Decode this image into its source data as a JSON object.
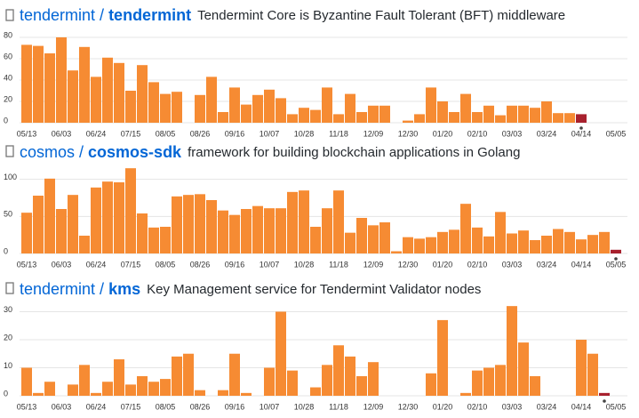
{
  "chart_data": [
    {
      "type": "bar",
      "owner": "tendermint",
      "separator": "/",
      "repo": "tendermint",
      "description": "Tendermint Core is Byzantine Fault Tolerant (BFT) middleware",
      "categories": [
        "05/13",
        null,
        null,
        "06/03",
        null,
        null,
        "06/24",
        null,
        null,
        "07/15",
        null,
        null,
        "08/05",
        null,
        null,
        "08/26",
        null,
        null,
        "09/16",
        null,
        null,
        "10/07",
        null,
        null,
        "10/28",
        null,
        null,
        "11/18",
        null,
        null,
        "12/09",
        null,
        null,
        "12/30",
        null,
        null,
        "01/20",
        null,
        null,
        "02/10",
        null,
        null,
        "03/03",
        null,
        null,
        "03/24",
        null,
        null,
        "04/14",
        null,
        null,
        "05/05"
      ],
      "values": [
        73,
        72,
        65,
        80,
        49,
        71,
        43,
        61,
        56,
        30,
        54,
        38,
        27,
        29,
        0,
        26,
        43,
        10,
        33,
        17,
        26,
        31,
        23,
        8,
        14,
        12,
        33,
        8,
        27,
        10,
        16,
        16,
        0,
        2,
        8,
        33,
        20,
        10,
        27,
        10,
        16,
        7,
        16,
        16,
        14,
        20,
        9,
        9,
        8,
        null,
        null,
        null
      ],
      "color": "#f68b33",
      "highlight_color": "#a8212e",
      "highlight_index": 48,
      "ylim": [
        0,
        85
      ],
      "yticks": [
        0,
        20,
        40,
        60,
        80
      ],
      "grid": true
    },
    {
      "type": "bar",
      "owner": "cosmos",
      "separator": "/",
      "repo": "cosmos-sdk",
      "description": "framework for building blockchain applications in Golang",
      "categories": [
        "05/13",
        null,
        null,
        "06/03",
        null,
        null,
        "06/24",
        null,
        null,
        "07/15",
        null,
        null,
        "08/05",
        null,
        null,
        "08/26",
        null,
        null,
        "09/16",
        null,
        null,
        "10/07",
        null,
        null,
        "10/28",
        null,
        null,
        "11/18",
        null,
        null,
        "12/09",
        null,
        null,
        "12/30",
        null,
        null,
        "01/20",
        null,
        null,
        "02/10",
        null,
        null,
        "03/03",
        null,
        null,
        "03/24",
        null,
        null,
        "04/14",
        null,
        null,
        "05/05"
      ],
      "values": [
        55,
        78,
        101,
        60,
        79,
        24,
        89,
        97,
        96,
        115,
        54,
        35,
        36,
        77,
        79,
        80,
        72,
        58,
        52,
        60,
        64,
        61,
        61,
        83,
        85,
        36,
        61,
        85,
        28,
        48,
        38,
        42,
        3,
        22,
        20,
        22,
        29,
        32,
        67,
        35,
        23,
        56,
        27,
        31,
        18,
        24,
        33,
        29,
        19,
        25,
        29,
        5
      ],
      "color": "#f68b33",
      "highlight_color": "#a8212e",
      "highlight_index": 51,
      "ylim": [
        0,
        120
      ],
      "yticks": [
        0,
        50,
        100
      ],
      "grid": true
    },
    {
      "type": "bar",
      "owner": "tendermint",
      "separator": "/",
      "repo": "kms",
      "description": "Key Management service for Tendermint Validator nodes",
      "categories": [
        "05/13",
        null,
        null,
        "06/03",
        null,
        null,
        "06/24",
        null,
        null,
        "07/15",
        null,
        null,
        "08/05",
        null,
        null,
        "08/26",
        null,
        null,
        "09/16",
        null,
        null,
        "10/07",
        null,
        null,
        "10/28",
        null,
        null,
        "11/18",
        null,
        null,
        "12/09",
        null,
        null,
        "12/30",
        null,
        null,
        "01/20",
        null,
        null,
        "02/10",
        null,
        null,
        "03/03",
        null,
        null,
        "03/24",
        null,
        null,
        "04/14",
        null,
        null,
        "05/05"
      ],
      "values": [
        10,
        1,
        5,
        0,
        4,
        11,
        1,
        5,
        13,
        4,
        7,
        5,
        6,
        14,
        15,
        2,
        0,
        2,
        15,
        1,
        0,
        10,
        30,
        9,
        0,
        3,
        11,
        18,
        14,
        7,
        12,
        0,
        0,
        0,
        0,
        8,
        27,
        0,
        1,
        9,
        10,
        11,
        32,
        19,
        7,
        0,
        0,
        0,
        20,
        15,
        1,
        null
      ],
      "color": "#f68b33",
      "highlight_color": "#a8212e",
      "highlight_index": 50,
      "ylim": [
        0,
        33
      ],
      "yticks": [
        0,
        10,
        20,
        30
      ],
      "grid": true
    }
  ]
}
